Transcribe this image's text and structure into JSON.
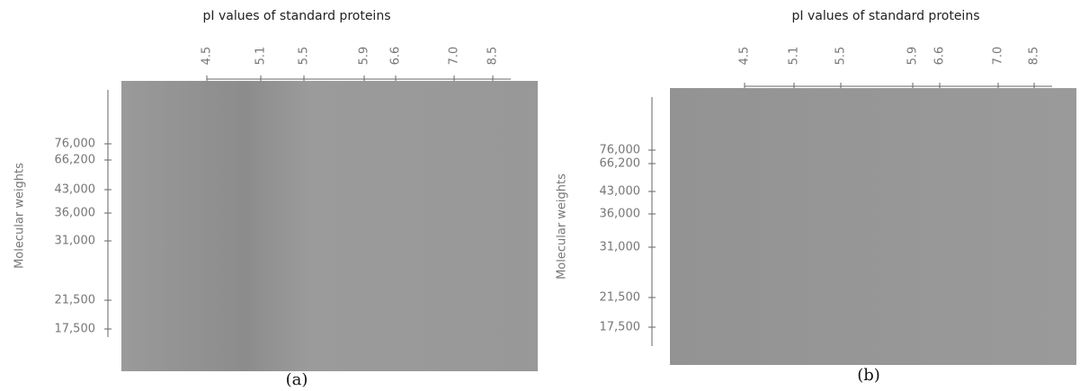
{
  "panels": [
    {
      "title": "pI values of standard proteins",
      "pi_labels": [
        "4.5",
        "5.1",
        "5.5",
        "5.9",
        "6.6",
        "7.0",
        "8.5"
      ],
      "y_label": "Molecular weights",
      "mw_labels": [
        "76,000",
        "66,200",
        "43,000",
        "36,000",
        "31,000",
        "21,500",
        "17,500"
      ],
      "caption": "(a)"
    },
    {
      "title": "pI values of standard proteins",
      "pi_labels": [
        "4.5",
        "5.1",
        "5.5",
        "5.9",
        "6.6",
        "7.0",
        "8.5"
      ],
      "y_label": "Molecular weights",
      "mw_labels": [
        "76,000",
        "66,200",
        "43,000",
        "36,000",
        "31,000",
        "21,500",
        "17,500"
      ],
      "caption": "(b)"
    }
  ]
}
